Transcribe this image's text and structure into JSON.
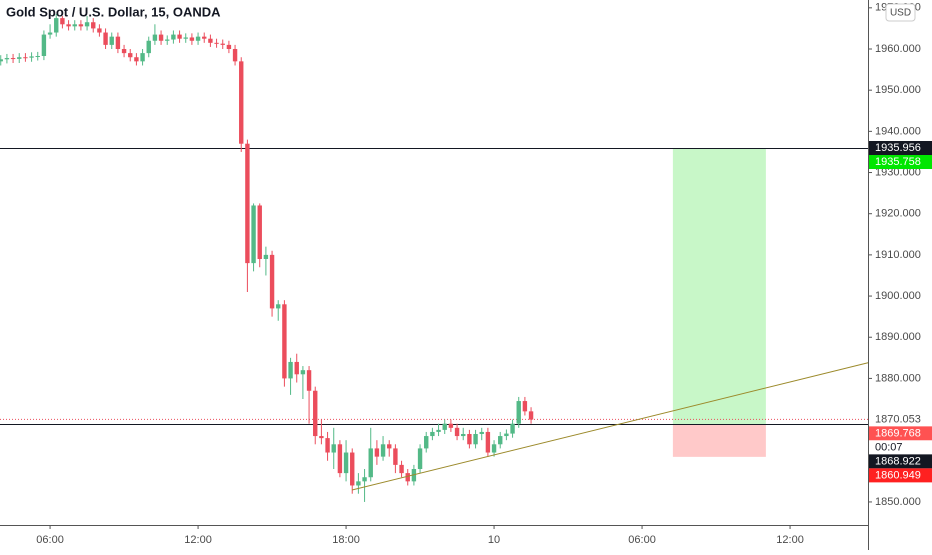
{
  "chart_data": {
    "type": "candlestick",
    "title": "Gold Spot / U.S. Dollar, 15, OANDA",
    "currency": "USD",
    "up_color": "#53b987",
    "down_color": "#eb4d5c",
    "xlim": [
      3.97,
      39.16
    ],
    "ylim": [
      1844.4,
      1971.9
    ],
    "xticks": [
      {
        "value": 6,
        "label": "06:00"
      },
      {
        "value": 12,
        "label": "12:00"
      },
      {
        "value": 18,
        "label": "18:00"
      },
      {
        "value": 24,
        "label": "10"
      },
      {
        "value": 30,
        "label": "06:00"
      },
      {
        "value": 36,
        "label": "12:00"
      }
    ],
    "yticks": [
      {
        "value": 1850,
        "label": "1850.000"
      },
      {
        "value": 1880,
        "label": "1880.000"
      },
      {
        "value": 1890,
        "label": "1890.000"
      },
      {
        "value": 1900,
        "label": "1900.000"
      },
      {
        "value": 1910,
        "label": "1910.000"
      },
      {
        "value": 1920,
        "label": "1920.000"
      },
      {
        "value": 1930,
        "label": "1930.000"
      },
      {
        "value": 1940,
        "label": "1940.000"
      },
      {
        "value": 1950,
        "label": "1950.000"
      },
      {
        "value": 1960,
        "label": "1960.000"
      },
      {
        "value": 1970,
        "label": "1970.000"
      }
    ],
    "x": [
      4,
      4.25,
      4.5,
      4.75,
      5,
      5.25,
      5.5,
      5.75,
      6,
      6.25,
      6.5,
      6.75,
      7,
      7.25,
      7.5,
      7.75,
      8,
      8.25,
      8.5,
      8.75,
      9,
      9.25,
      9.5,
      9.75,
      10,
      10.25,
      10.5,
      10.75,
      11,
      11.25,
      11.5,
      11.75,
      12,
      12.25,
      12.5,
      12.75,
      13,
      13.25,
      13.5,
      13.75,
      14,
      14.25,
      14.5,
      14.75,
      15,
      15.25,
      15.5,
      15.75,
      16,
      16.25,
      16.5,
      16.75,
      17,
      17.25,
      17.5,
      17.75,
      18,
      18.25,
      18.5,
      18.75,
      19,
      19.25,
      19.5,
      19.75,
      20,
      20.25,
      20.5,
      20.75,
      21,
      21.25,
      21.5,
      21.75,
      22,
      22.25,
      22.5,
      22.75,
      23,
      23.25,
      23.5,
      23.75,
      24,
      24.25,
      24.5,
      24.75,
      25,
      25.25,
      25.5
    ],
    "open": [
      1957,
      1957.5,
      1957.8,
      1957.6,
      1958,
      1957.9,
      1958.2,
      1958.3,
      1963.5,
      1964,
      1967.5,
      1966,
      1965.5,
      1966,
      1965.5,
      1966.5,
      1965,
      1964,
      1961,
      1963,
      1960,
      1959,
      1958,
      1957,
      1959,
      1962,
      1963.5,
      1962,
      1962.3,
      1963.5,
      1962.5,
      1962.8,
      1962,
      1963,
      1962.5,
      1961.5,
      1961.3,
      1961,
      1960,
      1957,
      1937,
      1908,
      1922,
      1909,
      1910,
      1897,
      1898,
      1880,
      1884,
      1881,
      1882,
      1877,
      1866,
      1865.5,
      1862,
      1864,
      1857,
      1862,
      1854,
      1855,
      1856,
      1863,
      1861,
      1864,
      1863,
      1859,
      1857,
      1855,
      1858,
      1863,
      1866,
      1867,
      1867.5,
      1869,
      1868,
      1866,
      1866.5,
      1864,
      1866.5,
      1867,
      1862,
      1864,
      1866,
      1866.6,
      1869,
      1874.5,
      1872
    ],
    "high": [
      1958.5,
      1958.8,
      1958.8,
      1959,
      1959,
      1959.2,
      1959.3,
      1964.5,
      1966,
      1968.5,
      1968,
      1967,
      1967,
      1967,
      1968,
      1967.5,
      1966,
      1965,
      1964,
      1964,
      1961,
      1960,
      1959,
      1960,
      1963,
      1966,
      1964.5,
      1963.3,
      1964.5,
      1964.5,
      1963.8,
      1963.8,
      1964,
      1964,
      1963.5,
      1962.5,
      1962.3,
      1962,
      1961,
      1958,
      1938,
      1922.5,
      1922.5,
      1912,
      1911,
      1899,
      1899,
      1885,
      1886,
      1883,
      1883,
      1878,
      1870,
      1867,
      1868,
      1865,
      1865,
      1863,
      1857,
      1858,
      1868,
      1865,
      1866,
      1865,
      1864,
      1860,
      1858,
      1859,
      1864,
      1867,
      1868,
      1869,
      1870,
      1870,
      1869,
      1868,
      1867.5,
      1867.5,
      1868,
      1868,
      1865,
      1867,
      1867.6,
      1870,
      1875.5,
      1875.5,
      1873
    ],
    "low": [
      1956,
      1956.5,
      1956.6,
      1956.6,
      1956.9,
      1956.9,
      1957.2,
      1957.3,
      1962.5,
      1963,
      1965,
      1964.5,
      1964.5,
      1964.5,
      1964.5,
      1964,
      1963,
      1960,
      1960,
      1959,
      1958,
      1957,
      1956,
      1956,
      1958,
      1961,
      1961,
      1961,
      1961.3,
      1961.5,
      1961.5,
      1961,
      1961,
      1961.5,
      1960.5,
      1960.3,
      1960,
      1959,
      1956,
      1935,
      1901,
      1906,
      1907,
      1905,
      1895,
      1894,
      1878,
      1876,
      1879,
      1875,
      1869,
      1864,
      1864,
      1860,
      1858,
      1856,
      1855,
      1852,
      1852,
      1850,
      1855,
      1859,
      1860,
      1861,
      1857,
      1856,
      1854,
      1854,
      1857,
      1862,
      1865,
      1866,
      1866.5,
      1867,
      1865,
      1865,
      1863,
      1863,
      1865,
      1861,
      1861,
      1863,
      1865,
      1865.6,
      1868,
      1871,
      1869
    ],
    "close": [
      1957.5,
      1957.8,
      1957.6,
      1958,
      1957.9,
      1958.2,
      1958.3,
      1963.5,
      1964,
      1967.5,
      1966,
      1965.5,
      1966,
      1965.5,
      1966.5,
      1965,
      1964,
      1961,
      1963,
      1960,
      1959,
      1958,
      1957,
      1959,
      1962,
      1963.5,
      1962,
      1962.3,
      1963.5,
      1962.5,
      1962.8,
      1962,
      1963,
      1962.5,
      1961.5,
      1961.3,
      1961,
      1960,
      1957,
      1937,
      1908,
      1922,
      1909,
      1910,
      1897,
      1898,
      1880,
      1884,
      1881,
      1882,
      1877,
      1866,
      1865.5,
      1862,
      1864,
      1857,
      1862,
      1854,
      1855,
      1856,
      1863,
      1861,
      1864,
      1863,
      1859,
      1857,
      1855,
      1858,
      1863,
      1866,
      1867,
      1867.5,
      1869,
      1868,
      1866,
      1866.5,
      1864,
      1866.5,
      1867,
      1862,
      1864,
      1866,
      1866.6,
      1869,
      1874.5,
      1872,
      1870
    ],
    "levels": [
      {
        "value": 1935.956,
        "color": "#131722"
      },
      {
        "value": 1868.922,
        "color": "#131722"
      }
    ],
    "last_price_line": {
      "value": 1870.053,
      "color": "#eb4d5c"
    },
    "trendline": {
      "x": [
        18.24,
        39.16
      ],
      "y": [
        1852.9,
        1883.8
      ],
      "color": "#9c8a2b"
    },
    "position": {
      "x": [
        31.25,
        35.02
      ],
      "entry": 1868.922,
      "target": 1935.758,
      "stop": 1860.949,
      "profit_color": "#c8f7c8",
      "loss_color": "#ffc9c9"
    },
    "price_labels": [
      {
        "value": 1935.956,
        "color": "#131722"
      },
      {
        "value": 1935.758,
        "color": "#00e600"
      },
      {
        "value": 1870.053
      },
      {
        "value": 1869.768,
        "color": "#ff5252",
        "countdown": "00:07"
      },
      {
        "value": 1868.922,
        "color": "#131722"
      },
      {
        "value": 1860.949,
        "color": "#ff2020"
      }
    ]
  }
}
